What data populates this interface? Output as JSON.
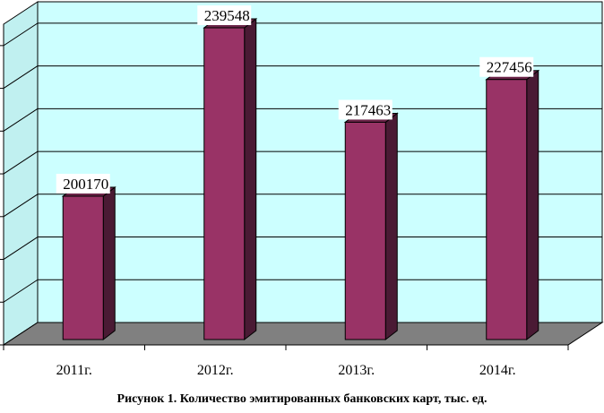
{
  "chart_data": {
    "type": "bar",
    "categories": [
      "2011г.",
      "2012г.",
      "2013г.",
      "2014г."
    ],
    "values": [
      200170,
      239548,
      217463,
      227456
    ],
    "title": "",
    "caption": "Рисунок 1. Количество эмитированных банковских карт, тыс. ед.",
    "xlabel": "",
    "ylabel": "",
    "ylim": [
      170000,
      245000
    ],
    "grid": true,
    "legend": "none",
    "three_d": true
  },
  "colors": {
    "plot_back_wall": "#ccffff",
    "floor": "#808080",
    "side_wall": "#c0f0f0",
    "bar_front": "#993366",
    "bar_side": "#4a1a34",
    "bar_top": "#6b2448",
    "gridline": "#000000",
    "label_box": "#ffffff"
  }
}
